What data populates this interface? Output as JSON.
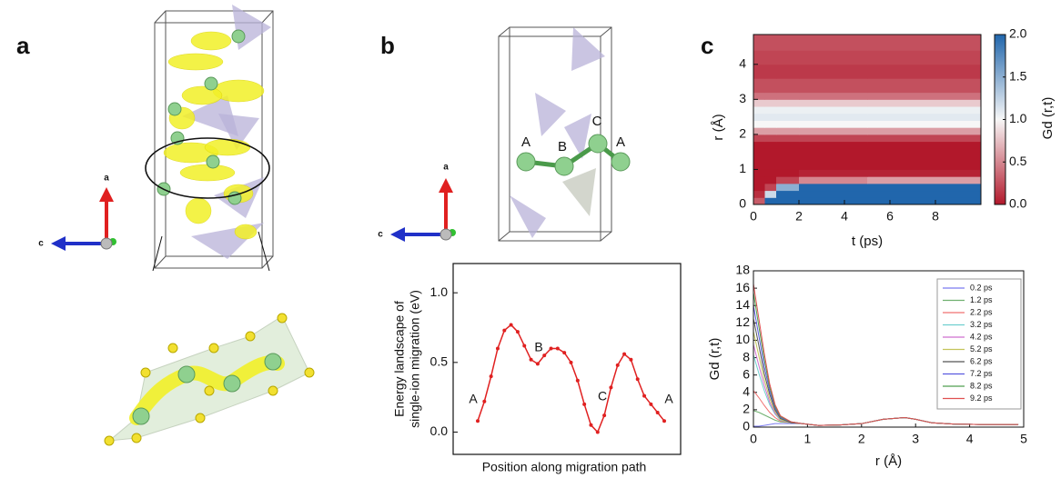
{
  "panel_labels": [
    "a",
    "b",
    "c"
  ],
  "structure_a": {
    "axes": [
      "a",
      "c"
    ]
  },
  "structure_b": {
    "axes": [
      "a",
      "c"
    ],
    "sites": [
      "A",
      "B",
      "C",
      "A"
    ]
  },
  "chart_data": [
    {
      "type": "line",
      "ylabel": [
        "Energy landscape of",
        "single-ion migration (eV)"
      ],
      "xlabel": "Position along migration path",
      "annotations": [
        "A",
        "B",
        "C",
        "A"
      ],
      "color": "#e02020",
      "values": [
        0.08,
        0.22,
        0.4,
        0.6,
        0.73,
        0.77,
        0.72,
        0.62,
        0.52,
        0.49,
        0.55,
        0.6,
        0.6,
        0.57,
        0.5,
        0.37,
        0.2,
        0.05,
        0.0,
        0.12,
        0.32,
        0.48,
        0.56,
        0.52,
        0.38,
        0.26,
        0.2,
        0.14,
        0.08
      ],
      "ylim": [
        -0.16,
        1.21
      ],
      "yticks": [
        {
          "value": 0,
          "label": "0.0"
        },
        {
          "value": 0.5,
          "label": "0.5"
        },
        {
          "value": 1,
          "label": "1.0"
        }
      ]
    },
    {
      "type": "heatmap",
      "xlabel": "t (ps)",
      "ylabel": "r (Å)",
      "zlabel": "Gd (r,t)",
      "x_bins": [
        0,
        0.5,
        1,
        2,
        5,
        10
      ],
      "y_bins": [
        0,
        0.2,
        0.4,
        0.6,
        0.8,
        1.0,
        1.2,
        1.4,
        1.6,
        1.8,
        2.0,
        2.2,
        2.4,
        2.6,
        2.8,
        3.0,
        3.2,
        3.6,
        4.0,
        4.4,
        4.85
      ],
      "z": [
        [
          0.3,
          2,
          2,
          2,
          2
        ],
        [
          0.1,
          1.2,
          2,
          2,
          2
        ],
        [
          0,
          0.2,
          1.5,
          2,
          2
        ],
        [
          0,
          0,
          0.2,
          0.5,
          0.6
        ],
        [
          0,
          0,
          0,
          0.05,
          0.05
        ],
        [
          0,
          0,
          0,
          0,
          0
        ],
        [
          0,
          0,
          0,
          0,
          0
        ],
        [
          0,
          0,
          0,
          0,
          0
        ],
        [
          0,
          0,
          0,
          0,
          0
        ],
        [
          0.2,
          0.2,
          0.2,
          0.2,
          0.2
        ],
        [
          0.6,
          0.6,
          0.6,
          0.6,
          0.6
        ],
        [
          1.0,
          1.0,
          1.0,
          1.0,
          1.0
        ],
        [
          1.1,
          1.1,
          1.1,
          1.1,
          1.1
        ],
        [
          1.05,
          1.05,
          1.05,
          1.05,
          1.05
        ],
        [
          0.8,
          0.8,
          0.8,
          0.8,
          0.8
        ],
        [
          0.4,
          0.4,
          0.4,
          0.4,
          0.4
        ],
        [
          0.25,
          0.25,
          0.25,
          0.25,
          0.25
        ],
        [
          0.15,
          0.15,
          0.15,
          0.15,
          0.15
        ],
        [
          0.2,
          0.2,
          0.2,
          0.2,
          0.2
        ],
        [
          0.25,
          0.25,
          0.25,
          0.25,
          0.25
        ]
      ],
      "colormap": [
        "#b2182b",
        "#f7f7f7",
        "#2166ac"
      ],
      "xlim": [
        0,
        10
      ],
      "ylim": [
        0,
        4.85
      ],
      "zlim": [
        0,
        2
      ],
      "xticks": [
        0,
        2,
        4,
        6,
        8
      ],
      "yticks": [
        0,
        1,
        2,
        3,
        4
      ],
      "zticks": [
        {
          "value": 0,
          "label": "0.0"
        },
        {
          "value": 0.5,
          "label": "0.5"
        },
        {
          "value": 1,
          "label": "1.0"
        },
        {
          "value": 1.5,
          "label": "1.5"
        },
        {
          "value": 2,
          "label": "2.0"
        }
      ]
    },
    {
      "type": "multiline",
      "xlabel": "r (Å)",
      "ylabel": "Gd (r,t)",
      "legend": "upper right",
      "x": [
        0,
        0.1,
        0.2,
        0.3,
        0.4,
        0.5,
        0.7,
        0.9,
        1.2,
        1.6,
        2.0,
        2.4,
        2.8,
        3.0,
        3.3,
        3.7,
        4.2,
        4.9
      ],
      "xlim": [
        0,
        5
      ],
      "ylim": [
        0,
        18
      ],
      "xticks": [
        0,
        1,
        2,
        3,
        4,
        5
      ],
      "yticks": [
        0,
        2,
        4,
        6,
        8,
        10,
        12,
        14,
        16,
        18
      ],
      "series": [
        {
          "name": "0.2 ps",
          "color": "#7b7bf0",
          "values": [
            0.1,
            0.1,
            0.2,
            0.3,
            0.4,
            0.4,
            0.4,
            0.4,
            0.2,
            0.25,
            0.4,
            0.9,
            1.1,
            0.9,
            0.5,
            0.35,
            0.3,
            0.3
          ]
        },
        {
          "name": "1.2 ps",
          "color": "#6fb06f",
          "values": [
            1.9,
            1.7,
            1.4,
            1.1,
            0.8,
            0.6,
            0.5,
            0.4,
            0.2,
            0.25,
            0.4,
            0.9,
            1.1,
            0.9,
            0.5,
            0.35,
            0.3,
            0.3
          ]
        },
        {
          "name": "2.2 ps",
          "color": "#f07070",
          "values": [
            4.2,
            3.4,
            2.5,
            1.7,
            1.1,
            0.7,
            0.5,
            0.4,
            0.2,
            0.25,
            0.4,
            0.9,
            1.1,
            0.9,
            0.5,
            0.35,
            0.3,
            0.3
          ]
        },
        {
          "name": "3.2 ps",
          "color": "#6fcfcf",
          "values": [
            8.3,
            6.2,
            4.2,
            2.6,
            1.5,
            0.8,
            0.5,
            0.4,
            0.2,
            0.25,
            0.4,
            0.9,
            1.1,
            0.9,
            0.5,
            0.35,
            0.3,
            0.3
          ]
        },
        {
          "name": "4.2 ps",
          "color": "#cf6fcf",
          "values": [
            9.5,
            7.1,
            4.8,
            2.9,
            1.6,
            0.9,
            0.5,
            0.4,
            0.2,
            0.25,
            0.4,
            0.9,
            1.1,
            0.9,
            0.5,
            0.35,
            0.3,
            0.3
          ]
        },
        {
          "name": "5.2 ps",
          "color": "#c4c45a",
          "values": [
            11,
            8.2,
            5.5,
            3.3,
            1.8,
            0.9,
            0.5,
            0.4,
            0.2,
            0.25,
            0.4,
            0.9,
            1.1,
            0.9,
            0.5,
            0.35,
            0.3,
            0.3
          ]
        },
        {
          "name": "6.2 ps",
          "color": "#555555",
          "values": [
            12.5,
            9.4,
            6.2,
            3.8,
            2,
            1,
            0.5,
            0.4,
            0.2,
            0.25,
            0.4,
            0.9,
            1.1,
            0.9,
            0.5,
            0.35,
            0.3,
            0.3
          ]
        },
        {
          "name": "7.2 ps",
          "color": "#5a5ae0",
          "values": [
            14,
            10.5,
            7,
            4.2,
            2.2,
            1.1,
            0.6,
            0.4,
            0.2,
            0.25,
            0.4,
            0.9,
            1.1,
            0.9,
            0.5,
            0.35,
            0.3,
            0.3
          ]
        },
        {
          "name": "8.2 ps",
          "color": "#4f9f4f",
          "values": [
            15.5,
            11.6,
            7.8,
            4.6,
            2.4,
            1.2,
            0.6,
            0.4,
            0.2,
            0.25,
            0.4,
            0.9,
            1.1,
            0.9,
            0.5,
            0.35,
            0.3,
            0.3
          ]
        },
        {
          "name": "9.2 ps",
          "color": "#e05050",
          "values": [
            16.5,
            12.5,
            8.5,
            5,
            2.6,
            1.3,
            0.6,
            0.4,
            0.2,
            0.25,
            0.4,
            0.9,
            1.1,
            0.9,
            0.5,
            0.35,
            0.3,
            0.3
          ]
        }
      ]
    }
  ]
}
